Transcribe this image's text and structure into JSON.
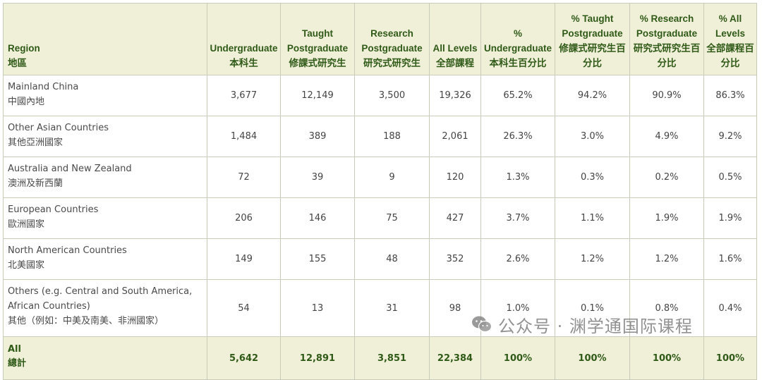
{
  "headers": [
    {
      "en": "Region",
      "zh": "地區"
    },
    {
      "en": "Undergraduate",
      "zh": "本科生"
    },
    {
      "en": "Taught Postgraduate",
      "zh": "修課式研究生"
    },
    {
      "en": "Research Postgraduate",
      "zh": "研究式研究生"
    },
    {
      "en": "All Levels",
      "zh": "全部課程"
    },
    {
      "en": "% Undergraduate",
      "zh": "本科生百分比"
    },
    {
      "en": "% Taught Postgraduate",
      "zh": "修課式研究生百分比"
    },
    {
      "en": "% Research Postgraduate",
      "zh": "研究式研究生百分比"
    },
    {
      "en": "% All Levels",
      "zh": "全部課程百分比"
    }
  ],
  "rows": [
    {
      "region_en": "Mainland China",
      "region_zh": "中國內地",
      "values": [
        "3,677",
        "12,149",
        "3,500",
        "19,326",
        "65.2%",
        "94.2%",
        "90.9%",
        "86.3%"
      ]
    },
    {
      "region_en": "Other Asian Countries",
      "region_zh": "其他亞洲國家",
      "values": [
        "1,484",
        "389",
        "188",
        "2,061",
        "26.3%",
        "3.0%",
        "4.9%",
        "9.2%"
      ]
    },
    {
      "region_en": "Australia and New Zealand",
      "region_zh": "澳洲及新西蘭",
      "values": [
        "72",
        "39",
        "9",
        "120",
        "1.3%",
        "0.3%",
        "0.2%",
        "0.5%"
      ]
    },
    {
      "region_en": "European Countries",
      "region_zh": "歐洲國家",
      "values": [
        "206",
        "146",
        "75",
        "427",
        "3.7%",
        "1.1%",
        "1.9%",
        "1.9%"
      ]
    },
    {
      "region_en": "North American Countries",
      "region_zh": "北美國家",
      "values": [
        "149",
        "155",
        "48",
        "352",
        "2.6%",
        "1.2%",
        "1.2%",
        "1.6%"
      ]
    },
    {
      "region_en": "Others (e.g. Central and South America, African Countries)",
      "region_zh": "其他（例如：中美及南美、非洲國家）",
      "values": [
        "54",
        "13",
        "31",
        "98",
        "1.0%",
        "0.1%",
        "0.8%",
        "0.4%"
      ]
    }
  ],
  "total": {
    "region_en": "All",
    "region_zh": "總計",
    "values": [
      "5,642",
      "12,891",
      "3,851",
      "22,384",
      "100%",
      "100%",
      "100%",
      "100%"
    ]
  },
  "watermark": {
    "text": "公众号 · 渊学通国际课程",
    "icon": "wechat-icon"
  },
  "colors": {
    "header_bg": "#f0efd8",
    "header_text": "#2f5a17",
    "border": "#c9ccb8"
  }
}
